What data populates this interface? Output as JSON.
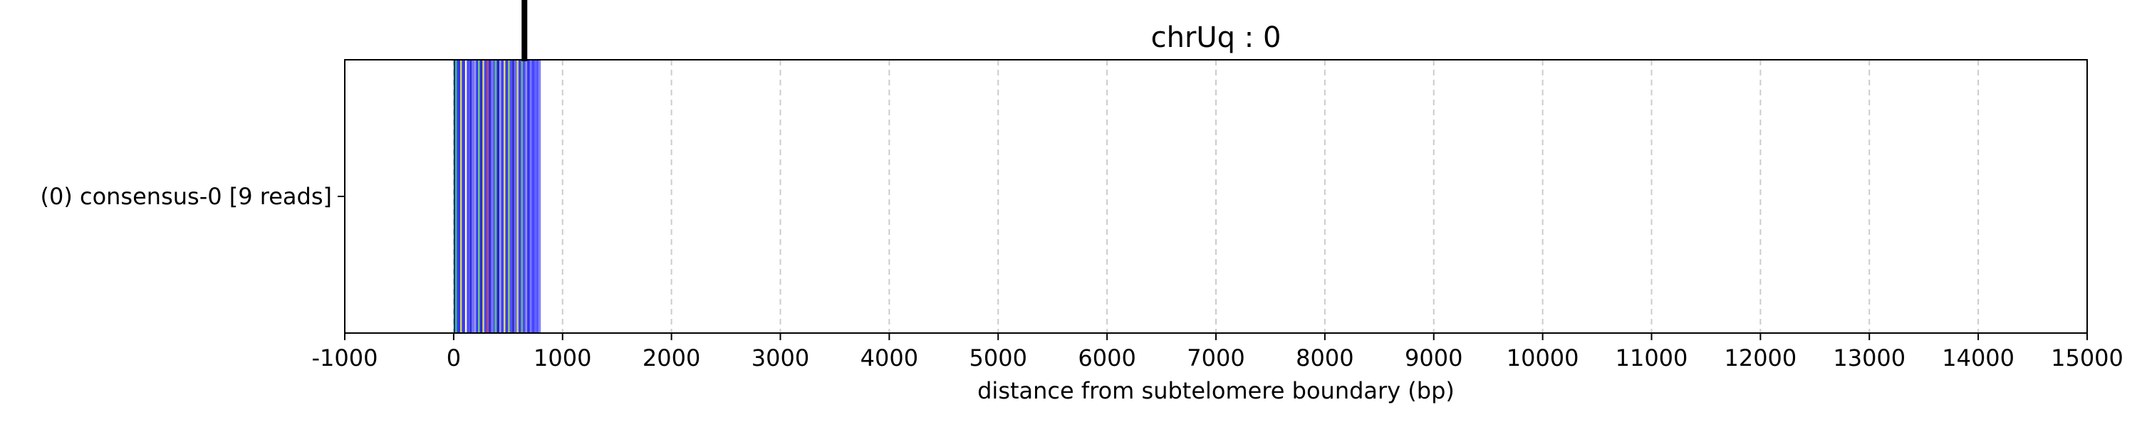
{
  "chart_data": {
    "type": "bar",
    "orientation": "horizontal",
    "title": "chrUq : 0",
    "xlabel": "distance from subtelomere boundary (bp)",
    "ylabel": "",
    "xlim": [
      -1000,
      15000
    ],
    "x_ticks": [
      -1000,
      0,
      1000,
      2000,
      3000,
      4000,
      5000,
      6000,
      7000,
      8000,
      9000,
      10000,
      11000,
      12000,
      13000,
      14000,
      15000
    ],
    "grid": "x-dashed",
    "categories": [
      "(0) consensus-0 [9 reads]"
    ],
    "marker": {
      "x": 650,
      "color": "#000000"
    },
    "segments": [
      {
        "start": 0,
        "end": 15,
        "color": "#1a2a8a"
      },
      {
        "start": 15,
        "end": 30,
        "color": "#33cc55"
      },
      {
        "start": 30,
        "end": 60,
        "color": "#3333ff"
      },
      {
        "start": 60,
        "end": 75,
        "color": "#d9d94a"
      },
      {
        "start": 75,
        "end": 105,
        "color": "#3a3ae6"
      },
      {
        "start": 105,
        "end": 120,
        "color": "#ffffff"
      },
      {
        "start": 120,
        "end": 150,
        "color": "#4d4dff"
      },
      {
        "start": 150,
        "end": 165,
        "color": "#2a2acc"
      },
      {
        "start": 165,
        "end": 190,
        "color": "#6f6fff"
      },
      {
        "start": 190,
        "end": 205,
        "color": "#9999e6"
      },
      {
        "start": 205,
        "end": 225,
        "color": "#3333ff"
      },
      {
        "start": 225,
        "end": 240,
        "color": "#66cc66"
      },
      {
        "start": 240,
        "end": 265,
        "color": "#2b2bd9"
      },
      {
        "start": 265,
        "end": 280,
        "color": "#dddd55"
      },
      {
        "start": 280,
        "end": 305,
        "color": "#4444ff"
      },
      {
        "start": 305,
        "end": 320,
        "color": "#cc4444"
      },
      {
        "start": 320,
        "end": 345,
        "color": "#3030e0"
      },
      {
        "start": 345,
        "end": 360,
        "color": "#7777ee"
      },
      {
        "start": 360,
        "end": 380,
        "color": "#5a5aff"
      },
      {
        "start": 380,
        "end": 395,
        "color": "#55cc66"
      },
      {
        "start": 395,
        "end": 420,
        "color": "#2525cc"
      },
      {
        "start": 420,
        "end": 435,
        "color": "#a0a0f0"
      },
      {
        "start": 435,
        "end": 460,
        "color": "#4040ff"
      },
      {
        "start": 460,
        "end": 475,
        "color": "#e0e055"
      },
      {
        "start": 475,
        "end": 500,
        "color": "#3838f0"
      },
      {
        "start": 500,
        "end": 515,
        "color": "#88cc55"
      },
      {
        "start": 515,
        "end": 540,
        "color": "#5050ff"
      },
      {
        "start": 540,
        "end": 555,
        "color": "#2020b0"
      },
      {
        "start": 555,
        "end": 580,
        "color": "#6a6aff"
      },
      {
        "start": 580,
        "end": 595,
        "color": "#d8d860"
      },
      {
        "start": 595,
        "end": 620,
        "color": "#3c3cf5"
      },
      {
        "start": 620,
        "end": 635,
        "color": "#66bb66"
      },
      {
        "start": 635,
        "end": 660,
        "color": "#4848ff"
      },
      {
        "start": 660,
        "end": 675,
        "color": "#9090f0"
      },
      {
        "start": 675,
        "end": 700,
        "color": "#3333ee"
      },
      {
        "start": 700,
        "end": 715,
        "color": "#7a7aff"
      },
      {
        "start": 715,
        "end": 740,
        "color": "#4545ff"
      },
      {
        "start": 740,
        "end": 755,
        "color": "#6060ff"
      },
      {
        "start": 755,
        "end": 780,
        "color": "#5555ff"
      },
      {
        "start": 780,
        "end": 800,
        "color": "#8080ff"
      }
    ]
  }
}
